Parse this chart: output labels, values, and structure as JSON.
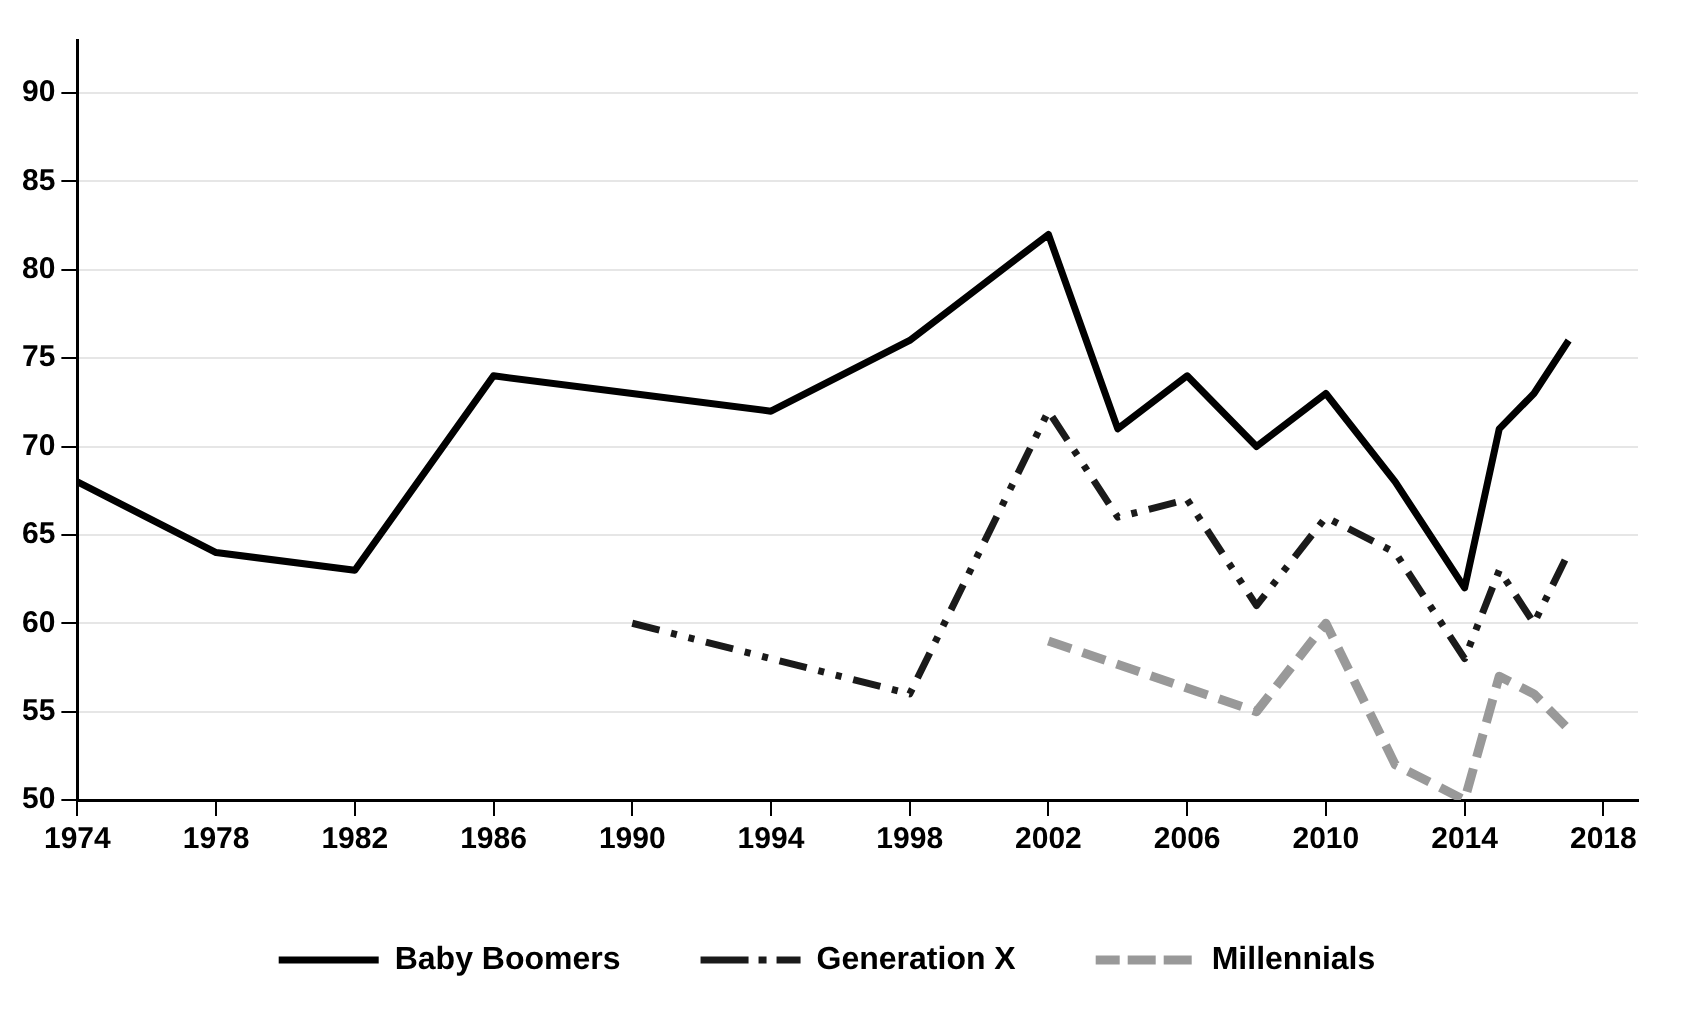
{
  "chart_data": {
    "type": "line",
    "series": [
      {
        "name": "Baby Boomers",
        "color": "#000000",
        "line_style": "solid",
        "x": [
          1974,
          1978,
          1982,
          1986,
          1990,
          1994,
          1998,
          2002,
          2004,
          2006,
          2008,
          2010,
          2012,
          2014,
          2015,
          2016,
          2017
        ],
        "values": [
          68,
          64,
          63,
          74,
          73,
          72,
          76,
          82,
          71,
          74,
          70,
          73,
          68,
          62,
          71,
          73,
          76
        ]
      },
      {
        "name": "Generation X",
        "color": "#1a1a1a",
        "line_style": "dashed",
        "x": [
          1990,
          1994,
          1998,
          2002,
          2004,
          2006,
          2008,
          2010,
          2012,
          2014,
          2015,
          2016,
          2017
        ],
        "values": [
          60,
          58,
          56,
          72,
          66,
          67,
          61,
          66,
          64,
          58,
          63,
          60,
          64
        ]
      },
      {
        "name": "Millennials",
        "color": "#999999",
        "line_style": "dashed",
        "x": [
          2002,
          2008,
          2010,
          2012,
          2014,
          2015,
          2016,
          2017
        ],
        "values": [
          59,
          55,
          60,
          52,
          50,
          57,
          56,
          54
        ]
      }
    ],
    "xlim": [
      1974,
      2019
    ],
    "xticks": [
      1974,
      1978,
      1982,
      1986,
      1990,
      1994,
      1998,
      2002,
      2006,
      2010,
      2014,
      2018
    ],
    "ylim": [
      50,
      93
    ],
    "yticks": [
      50,
      55,
      60,
      65,
      70,
      75,
      80,
      85,
      90
    ],
    "grid": "y",
    "legend": "bottom",
    "marker": "none"
  }
}
